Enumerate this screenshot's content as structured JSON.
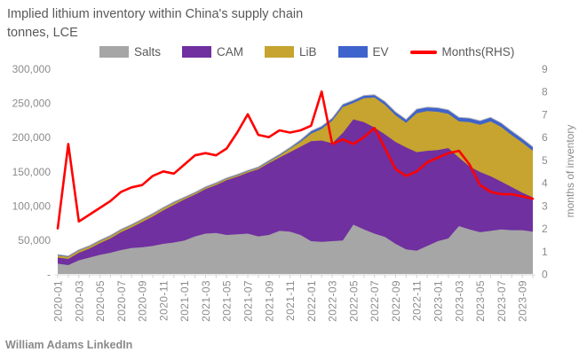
{
  "header": {
    "title": "Implied lithium inventory within China's supply chain",
    "subtitle": "tonnes, LCE"
  },
  "legend": {
    "items": [
      {
        "key": "salts",
        "label": "Salts",
        "color": "#a6a6a6",
        "type": "box"
      },
      {
        "key": "cam",
        "label": "CAM",
        "color": "#7030a0",
        "type": "box"
      },
      {
        "key": "lib",
        "label": "LiB",
        "color": "#c6a42f",
        "type": "box"
      },
      {
        "key": "ev",
        "label": "EV",
        "color": "#3f63cc",
        "type": "box"
      },
      {
        "key": "months",
        "label": "Months(RHS)",
        "color": "#ff0000",
        "type": "line"
      }
    ]
  },
  "footer": {
    "credit": "William Adams LinkedIn"
  },
  "chart_data": {
    "type": "area",
    "subtype": "stacked-area-with-rhs-line",
    "title": "Implied lithium inventory within China's supply chain",
    "subtitle": "tonnes, LCE",
    "grid": false,
    "legend_position": "top",
    "x": [
      "2020-01",
      "2020-02",
      "2020-03",
      "2020-04",
      "2020-05",
      "2020-06",
      "2020-07",
      "2020-08",
      "2020-09",
      "2020-10",
      "2020-11",
      "2020-12",
      "2021-01",
      "2021-02",
      "2021-03",
      "2021-04",
      "2021-05",
      "2021-06",
      "2021-07",
      "2021-08",
      "2021-09",
      "2021-10",
      "2021-11",
      "2021-12",
      "2022-01",
      "2022-02",
      "2022-03",
      "2022-04",
      "2022-05",
      "2022-06",
      "2022-07",
      "2022-08",
      "2022-09",
      "2022-10",
      "2022-11",
      "2022-12",
      "2023-01",
      "2023-02",
      "2023-03",
      "2023-04",
      "2023-05",
      "2023-06",
      "2023-07",
      "2023-08",
      "2023-09",
      "2023-10"
    ],
    "x_tick_labels": [
      "2020-01",
      "2020-03",
      "2020-05",
      "2020-07",
      "2020-09",
      "2020-11",
      "2021-01",
      "2021-03",
      "2021-05",
      "2021-07",
      "2021-09",
      "2021-11",
      "2022-01",
      "2022-03",
      "2022-05",
      "2022-07",
      "2022-09",
      "2022-11",
      "2023-01",
      "2023-03",
      "2023-05",
      "2023-07",
      "2023-09"
    ],
    "series": [
      {
        "name": "Salts",
        "type": "area",
        "axis": "left",
        "color": "#a6a6a6",
        "values": [
          15000,
          13000,
          20000,
          24000,
          28000,
          31000,
          35000,
          38000,
          39000,
          41000,
          44000,
          46000,
          49000,
          55000,
          59000,
          60000,
          57000,
          58000,
          59000,
          55000,
          57000,
          63000,
          62000,
          57000,
          48000,
          47000,
          48000,
          49000,
          72000,
          65000,
          59000,
          54000,
          44000,
          36000,
          34000,
          41000,
          48000,
          52000,
          70000,
          65000,
          61000,
          63000,
          65000,
          64000,
          64000,
          62000
        ]
      },
      {
        "name": "CAM",
        "type": "area",
        "axis": "left",
        "color": "#7030a0",
        "values": [
          9000,
          9000,
          11000,
          13000,
          17000,
          21000,
          26000,
          30000,
          37000,
          43000,
          49000,
          55000,
          60000,
          61000,
          65000,
          70000,
          80000,
          84000,
          89000,
          98000,
          105000,
          107000,
          116000,
          129000,
          146000,
          148000,
          143000,
          157000,
          154000,
          157000,
          155000,
          150000,
          149000,
          149000,
          144000,
          139000,
          133000,
          132000,
          100000,
          92000,
          88000,
          80000,
          70000,
          63000,
          55000,
          50000
        ]
      },
      {
        "name": "LiB",
        "type": "area",
        "axis": "left",
        "color": "#c6a42f",
        "values": [
          3000,
          3000,
          3000,
          3000,
          3000,
          3000,
          3000,
          3000,
          3000,
          3000,
          3000,
          3000,
          2000,
          2000,
          2000,
          2000,
          2000,
          2000,
          2000,
          2000,
          2000,
          3000,
          5000,
          7000,
          11000,
          17000,
          33000,
          38000,
          24000,
          35000,
          44000,
          43000,
          39000,
          36000,
          57000,
          58000,
          56000,
          50000,
          53000,
          65000,
          69000,
          80000,
          80000,
          76000,
          73000,
          68000
        ]
      },
      {
        "name": "EV",
        "type": "area",
        "axis": "left",
        "color": "#3f63cc",
        "values": [
          1500,
          1500,
          1500,
          1500,
          1500,
          1500,
          1500,
          1500,
          1500,
          1500,
          1500,
          1500,
          1500,
          1500,
          1500,
          1500,
          1500,
          1500,
          1500,
          1500,
          2000,
          2000,
          2000,
          3000,
          4000,
          4000,
          4000,
          4000,
          4000,
          4000,
          4000,
          5000,
          5000,
          5000,
          6000,
          6000,
          6000,
          6000,
          6000,
          6000,
          6000,
          6000,
          6000,
          6000,
          6000,
          6000
        ]
      },
      {
        "name": "Months(RHS)",
        "type": "line",
        "axis": "right",
        "color": "#ff0000",
        "values": [
          2.0,
          5.7,
          2.3,
          2.6,
          2.9,
          3.2,
          3.6,
          3.8,
          3.9,
          4.3,
          4.5,
          4.4,
          4.8,
          5.2,
          5.3,
          5.2,
          5.5,
          6.2,
          7.0,
          6.1,
          6.0,
          6.3,
          6.2,
          6.3,
          6.5,
          8.0,
          5.7,
          5.9,
          5.7,
          6.0,
          6.4,
          5.5,
          4.6,
          4.3,
          4.5,
          4.9,
          5.1,
          5.3,
          5.4,
          4.8,
          3.9,
          3.6,
          3.5,
          3.5,
          3.4,
          3.3
        ]
      }
    ],
    "left_axis": {
      "min": 0,
      "max": 300000,
      "step": 50000,
      "tick_labels": [
        "-",
        "50,000",
        "100,000",
        "150,000",
        "200,000",
        "250,000",
        "300,000"
      ]
    },
    "right_axis": {
      "min": 0,
      "max": 9,
      "step": 1,
      "title": "months of inventory",
      "tick_labels": [
        "0",
        "1",
        "2",
        "3",
        "4",
        "5",
        "6",
        "7",
        "8",
        "9"
      ]
    }
  }
}
